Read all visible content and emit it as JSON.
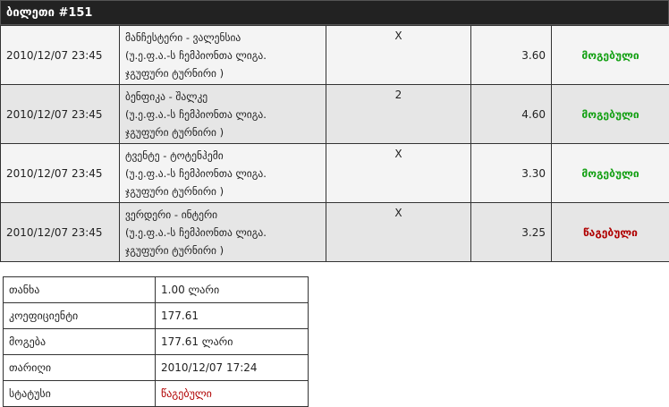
{
  "title": "ბილეთი #151",
  "colors": {
    "won": "#14a014",
    "lost": "#b00000",
    "header": "#222222"
  },
  "bets": [
    {
      "date": "2010/12/07 23:45",
      "match": "მანჩესტერი - ვალენსია",
      "league": "(უ.ე.ფ.ა.-ს ჩემპიონთა ლიგა.",
      "stage": "ჯგუფური ტურნირი )",
      "pick": "X",
      "odds": "3.60",
      "status": "მოგებული",
      "won": true
    },
    {
      "date": "2010/12/07 23:45",
      "match": "ბენფიკა - შალკე",
      "league": "(უ.ე.ფ.ა.-ს ჩემპიონთა ლიგა.",
      "stage": "ჯგუფური ტურნირი )",
      "pick": "2",
      "odds": "4.60",
      "status": "მოგებული",
      "won": true
    },
    {
      "date": "2010/12/07 23:45",
      "match": "ტვენტე - ტოტენჰემი",
      "league": "(უ.ე.ფ.ა.-ს ჩემპიონთა ლიგა.",
      "stage": "ჯგუფური ტურნირი )",
      "pick": "X",
      "odds": "3.30",
      "status": "მოგებული",
      "won": true
    },
    {
      "date": "2010/12/07 23:45",
      "match": "ვერდერი - ინტერი",
      "league": "(უ.ე.ფ.ა.-ს ჩემპიონთა ლიგა.",
      "stage": "ჯგუფური ტურნირი )",
      "pick": "X",
      "odds": "3.25",
      "status": "წაგებული",
      "won": false
    }
  ],
  "summary": [
    {
      "label": "თანხა",
      "value": "1.00 ლარი"
    },
    {
      "label": "კოეფიციენტი",
      "value": "177.61"
    },
    {
      "label": "მოგება",
      "value": "177.61 ლარი"
    },
    {
      "label": "თარიღი",
      "value": "2010/12/07 17:24"
    },
    {
      "label": "სტატუსი",
      "value": "წაგებული",
      "lost": true
    }
  ]
}
